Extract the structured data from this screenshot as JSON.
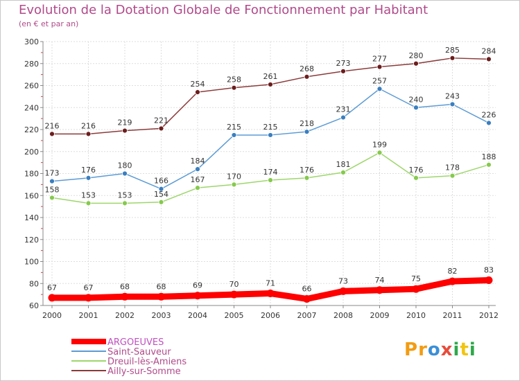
{
  "chart_data": {
    "type": "line",
    "title": "Evolution de la Dotation Globale de Fonctionnement par Habitant",
    "subtitle": "(en € et par an)",
    "xlabel": "",
    "ylabel": "",
    "ylim": [
      60,
      300
    ],
    "yticks": [
      60,
      80,
      100,
      120,
      140,
      160,
      180,
      200,
      220,
      240,
      260,
      280,
      300
    ],
    "x": [
      "2000",
      "2001",
      "2002",
      "2003",
      "2004",
      "2005",
      "2006",
      "2007",
      "2008",
      "2009",
      "2010",
      "2011",
      "2012"
    ],
    "series": [
      {
        "name": "ARGOEUVES",
        "color": "#ff0000",
        "marker": "#ff0000",
        "values": [
          67,
          67,
          68,
          68,
          69,
          70,
          71,
          66,
          73,
          74,
          75,
          82,
          83
        ]
      },
      {
        "name": "Saint-Sauveur",
        "color": "#5b9bd5",
        "marker": "#3a7fc0",
        "values": [
          173,
          176,
          180,
          166,
          184,
          215,
          215,
          218,
          231,
          257,
          240,
          243,
          226
        ]
      },
      {
        "name": "Dreuil-lès-Amiens",
        "color": "#9dd66b",
        "marker": "#86c94d",
        "values": [
          158,
          153,
          153,
          154,
          167,
          170,
          174,
          176,
          181,
          199,
          176,
          178,
          188
        ]
      },
      {
        "name": "Ailly-sur-Somme",
        "color": "#8b3a3a",
        "marker": "#6b1d1d",
        "values": [
          216,
          216,
          219,
          221,
          254,
          258,
          261,
          268,
          273,
          277,
          280,
          285,
          284
        ]
      }
    ],
    "grid": true,
    "legend": "bottom-left"
  },
  "logo": {
    "letters": [
      "P",
      "r",
      "o",
      "x",
      "i",
      "t",
      "i"
    ],
    "colors": [
      "#f39c12",
      "#f39c12",
      "#3a8fd8",
      "#e74c3c",
      "#2ea84a",
      "#f1c40f",
      "#2ea84a"
    ]
  }
}
